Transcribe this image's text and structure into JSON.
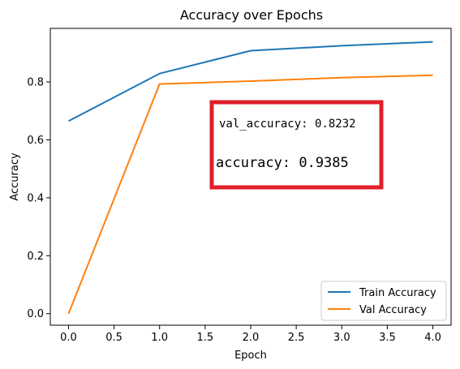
{
  "chart_data": {
    "type": "line",
    "title": "Accuracy over Epochs",
    "xlabel": "Epoch",
    "ylabel": "Accuracy",
    "xlim": [
      -0.2,
      4.2
    ],
    "ylim": [
      -0.04,
      0.985
    ],
    "x_ticks": [
      "0.0",
      "0.5",
      "1.0",
      "1.5",
      "2.0",
      "2.5",
      "3.0",
      "3.5",
      "4.0"
    ],
    "y_ticks": [
      "0.0",
      "0.2",
      "0.4",
      "0.6",
      "0.8"
    ],
    "grid": false,
    "legend_position": "lower-right",
    "x": [
      0,
      1,
      2,
      3,
      4
    ],
    "series": [
      {
        "name": "Train Accuracy",
        "color": "#1f77b4",
        "values": [
          0.665,
          0.829,
          0.908,
          0.925,
          0.9385
        ]
      },
      {
        "name": "Val Accuracy",
        "color": "#ff7f0e",
        "values": [
          0.0,
          0.793,
          0.803,
          0.815,
          0.8232
        ]
      }
    ],
    "annotation": {
      "lines": [
        "val_accuracy: 0.8232",
        "accuracy: 0.9385"
      ],
      "border_color": "#e0202a"
    }
  }
}
